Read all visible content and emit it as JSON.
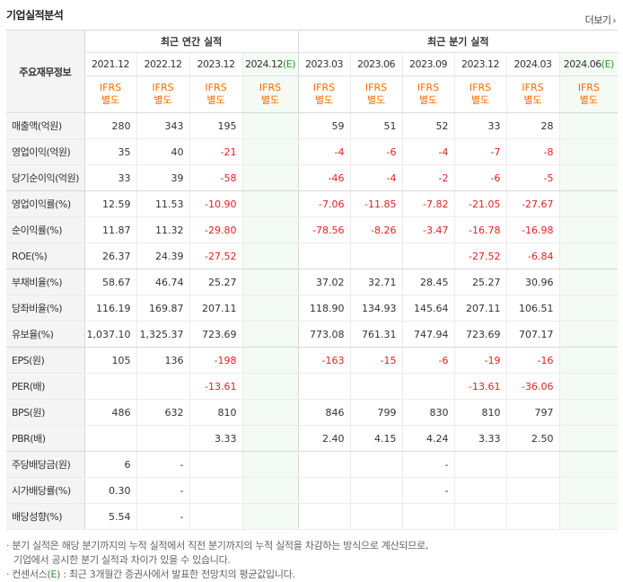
{
  "title": "기업실적분석",
  "more_label": "더보기",
  "header": {
    "row_head": "주요재무정보",
    "annual_group": "최근 연간 실적",
    "quarterly_group": "최근 분기 실적",
    "annual_periods": [
      "2021.12",
      "2022.12",
      "2023.12",
      "2024.12"
    ],
    "annual_est_suffix": "(E)",
    "quarterly_periods": [
      "2023.03",
      "2023.06",
      "2023.09",
      "2023.12",
      "2024.03",
      "2024.06"
    ],
    "quarterly_est_suffix": "(E)",
    "ifrs_line1": "IFRS",
    "ifrs_line2": "별도"
  },
  "rows": [
    {
      "label": "매출액(억원)",
      "annual": [
        "280",
        "343",
        "195",
        ""
      ],
      "quarterly": [
        "59",
        "51",
        "52",
        "33",
        "28",
        ""
      ]
    },
    {
      "label": "영업이익(억원)",
      "annual": [
        "35",
        "40",
        "-21",
        ""
      ],
      "quarterly": [
        "-4",
        "-6",
        "-4",
        "-7",
        "-8",
        ""
      ]
    },
    {
      "label": "당기순이익(억원)",
      "annual": [
        "33",
        "39",
        "-58",
        ""
      ],
      "quarterly": [
        "-46",
        "-4",
        "-2",
        "-6",
        "-5",
        ""
      ]
    },
    {
      "label": "영업이익률(%)",
      "annual": [
        "12.59",
        "11.53",
        "-10.90",
        ""
      ],
      "quarterly": [
        "-7.06",
        "-11.85",
        "-7.82",
        "-21.05",
        "-27.67",
        ""
      ]
    },
    {
      "label": "순이익률(%)",
      "annual": [
        "11.87",
        "11.32",
        "-29.80",
        ""
      ],
      "quarterly": [
        "-78.56",
        "-8.26",
        "-3.47",
        "-16.78",
        "-16.98",
        ""
      ]
    },
    {
      "label": "ROE(%)",
      "annual": [
        "26.37",
        "24.39",
        "-27.52",
        ""
      ],
      "quarterly": [
        "",
        "",
        "",
        "-27.52",
        "-6.84",
        ""
      ]
    },
    {
      "label": "부채비율(%)",
      "annual": [
        "58.67",
        "46.74",
        "25.27",
        ""
      ],
      "quarterly": [
        "37.02",
        "32.71",
        "28.45",
        "25.27",
        "30.96",
        ""
      ]
    },
    {
      "label": "당좌비율(%)",
      "annual": [
        "116.19",
        "169.87",
        "207.11",
        ""
      ],
      "quarterly": [
        "118.90",
        "134.93",
        "145.64",
        "207.11",
        "106.51",
        ""
      ]
    },
    {
      "label": "유보율(%)",
      "annual": [
        "1,037.10",
        "1,325.37",
        "723.69",
        ""
      ],
      "quarterly": [
        "773.08",
        "761.31",
        "747.94",
        "723.69",
        "707.17",
        ""
      ]
    },
    {
      "label": "EPS(원)",
      "annual": [
        "105",
        "136",
        "-198",
        ""
      ],
      "quarterly": [
        "-163",
        "-15",
        "-6",
        "-19",
        "-16",
        ""
      ]
    },
    {
      "label": "PER(배)",
      "annual": [
        "",
        "",
        "-13.61",
        ""
      ],
      "quarterly": [
        "",
        "",
        "",
        "-13.61",
        "-36.06",
        ""
      ]
    },
    {
      "label": "BPS(원)",
      "annual": [
        "486",
        "632",
        "810",
        ""
      ],
      "quarterly": [
        "846",
        "799",
        "830",
        "810",
        "797",
        ""
      ]
    },
    {
      "label": "PBR(배)",
      "annual": [
        "",
        "",
        "3.33",
        ""
      ],
      "quarterly": [
        "2.40",
        "4.15",
        "4.24",
        "3.33",
        "2.50",
        ""
      ]
    },
    {
      "label": "주당배당금(원)",
      "annual": [
        "6",
        "-",
        "",
        ""
      ],
      "quarterly": [
        "",
        "",
        "-",
        "",
        "",
        ""
      ]
    },
    {
      "label": "시가배당률(%)",
      "annual": [
        "0.30",
        "-",
        "",
        ""
      ],
      "quarterly": [
        "",
        "",
        "-",
        "",
        "",
        ""
      ]
    },
    {
      "label": "배당성향(%)",
      "annual": [
        "5.54",
        "-",
        "",
        ""
      ],
      "quarterly": [
        "",
        "",
        "",
        "",
        "",
        ""
      ]
    }
  ],
  "notes": {
    "note1_line1": "분기 실적은 해당 분기까지의 누적 실적에서 직전 분기까지의 누적 실적을 차감하는 방식으로 계산되므로,",
    "note1_line2": "기업에서 공시한 분기 실적과 차이가 있을 수 있습니다.",
    "note2_prefix": "컨센서스(",
    "note2_e": "E",
    "note2_suffix": ") : 최근 3개월간 증권사에서 발표한 전망치의 평균값입니다."
  },
  "colors": {
    "negative": "#e62020",
    "ifrs": "#ff6a00",
    "estimate_bg": "#f4fbf5",
    "estimate_mark": "#2a9d2a"
  }
}
